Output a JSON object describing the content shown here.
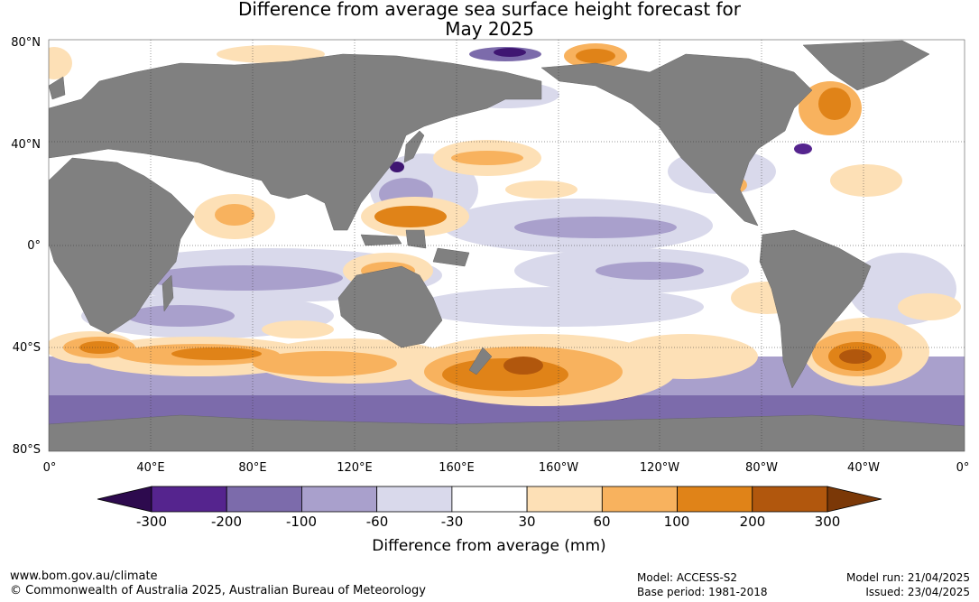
{
  "title": {
    "line1": "Difference from average sea surface height forecast for",
    "line2": "May 2025"
  },
  "map": {
    "lat_labels": [
      "80°N",
      "40°N",
      "0°",
      "40°S",
      "80°S"
    ],
    "lon_labels": [
      "0°",
      "40°E",
      "80°E",
      "120°E",
      "160°E",
      "160°W",
      "120°W",
      "80°W",
      "40°W",
      "0°"
    ]
  },
  "colorbar": {
    "label": "Difference from average (mm)",
    "ticks": [
      "-300",
      "-200",
      "-100",
      "-60",
      "-30",
      "30",
      "60",
      "100",
      "200",
      "300"
    ],
    "under_color": "#2d0a4e",
    "colors": [
      "#3f1672",
      "#55248e",
      "#7c6bab",
      "#a9a0cc",
      "#d9d9eb",
      "#ffffff",
      "#fde0b6",
      "#f8b25e",
      "#e08318",
      "#b1570d"
    ],
    "over_color": "#7b3807",
    "land_color": "#808080"
  },
  "footer": {
    "url": "www.bom.gov.au/climate",
    "copyright": "© Commonwealth of Australia 2025, Australian Bureau of Meteorology",
    "model": "Model: ACCESS-S2",
    "base_period": "Base period: 1981-2018",
    "model_run": "Model run: 21/04/2025",
    "issued": "Issued: 23/04/2025"
  }
}
